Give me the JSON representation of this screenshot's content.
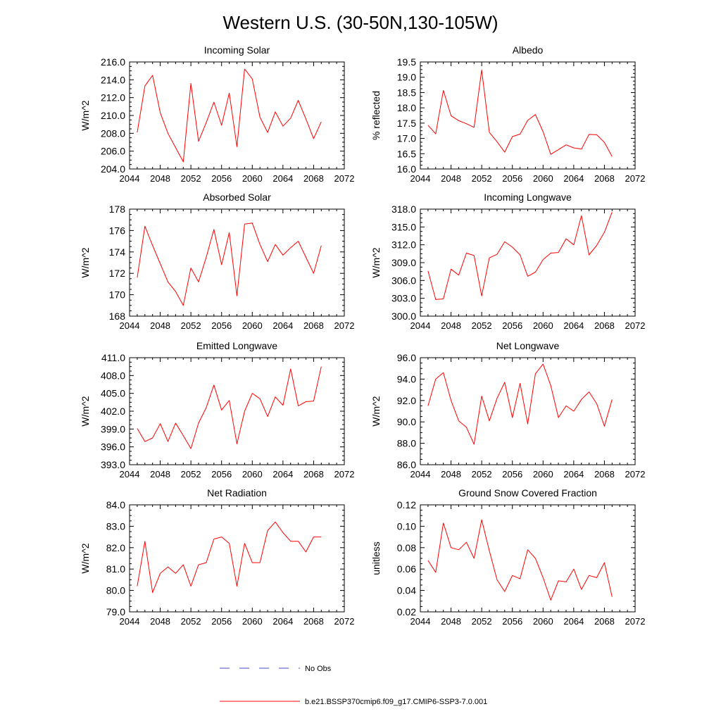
{
  "figure": {
    "title": "Western U.S. (30-50N,130-105W)"
  },
  "legend": {
    "items": [
      {
        "label": "No Obs",
        "color": "#4444cc",
        "dashed": true
      },
      {
        "label": "b.e21.BSSP370cmip6.f09_g17.CMIP6-SSP3-7.0.001",
        "color": "#ff0000",
        "dashed": false
      }
    ]
  },
  "chart_data": [
    {
      "type": "line",
      "title": "Incoming Solar",
      "ylabel": "W/m^2",
      "xlim": [
        2044,
        2072
      ],
      "ylim": [
        204.0,
        216.0
      ],
      "xticks": [
        2044,
        2048,
        2052,
        2056,
        2060,
        2064,
        2068,
        2072
      ],
      "xtick_labels": [
        "2044",
        "2048",
        "2052",
        "2056",
        "2060",
        "2064",
        "2068",
        "2072"
      ],
      "yticks": [
        204.0,
        206.0,
        208.0,
        210.0,
        212.0,
        214.0,
        216.0
      ],
      "ytick_labels": [
        "204.0",
        "206.0",
        "208.0",
        "210.0",
        "212.0",
        "214.0",
        "216.0"
      ],
      "x": [
        2045,
        2046,
        2047,
        2048,
        2049,
        2050,
        2051,
        2052,
        2053,
        2054,
        2055,
        2056,
        2057,
        2058,
        2059,
        2060,
        2061,
        2062,
        2063,
        2064,
        2065,
        2066,
        2067,
        2068,
        2069
      ],
      "series": [
        {
          "color": "#ff0000",
          "values": [
            208.1,
            213.3,
            214.5,
            210.3,
            208.0,
            206.4,
            204.8,
            213.6,
            207.1,
            209.2,
            211.5,
            208.9,
            212.5,
            206.5,
            215.2,
            214.1,
            209.8,
            208.1,
            210.4,
            208.8,
            209.7,
            211.7,
            209.6,
            207.4,
            209.3
          ]
        }
      ]
    },
    {
      "type": "line",
      "title": "Albedo",
      "ylabel": "% reflected",
      "xlim": [
        2044,
        2072
      ],
      "ylim": [
        16.0,
        19.5
      ],
      "xticks": [
        2044,
        2048,
        2052,
        2056,
        2060,
        2064,
        2068,
        2072
      ],
      "xtick_labels": [
        "2044",
        "2048",
        "2052",
        "2056",
        "2060",
        "2064",
        "2068",
        "2072"
      ],
      "yticks": [
        16.0,
        16.5,
        17.0,
        17.5,
        18.0,
        18.5,
        19.0,
        19.5
      ],
      "ytick_labels": [
        "16.0",
        "16.5",
        "17.0",
        "17.5",
        "18.0",
        "18.5",
        "19.0",
        "19.5"
      ],
      "x": [
        2045,
        2046,
        2047,
        2048,
        2049,
        2050,
        2051,
        2052,
        2053,
        2054,
        2055,
        2056,
        2057,
        2058,
        2059,
        2060,
        2061,
        2062,
        2063,
        2064,
        2065,
        2066,
        2067,
        2068,
        2069
      ],
      "series": [
        {
          "color": "#ff0000",
          "values": [
            17.43,
            17.15,
            18.57,
            17.74,
            17.58,
            17.48,
            17.36,
            19.24,
            17.2,
            16.89,
            16.55,
            17.06,
            17.14,
            17.59,
            17.78,
            17.22,
            16.48,
            16.63,
            16.79,
            16.69,
            16.65,
            17.13,
            17.12,
            16.87,
            16.41
          ]
        }
      ]
    },
    {
      "type": "line",
      "title": "Absorbed Solar",
      "ylabel": "W/m^2",
      "xlim": [
        2044,
        2072
      ],
      "ylim": [
        168,
        178
      ],
      "xticks": [
        2044,
        2048,
        2052,
        2056,
        2060,
        2064,
        2068,
        2072
      ],
      "xtick_labels": [
        "2044",
        "2048",
        "2052",
        "2056",
        "2060",
        "2064",
        "2068",
        "2072"
      ],
      "yticks": [
        168,
        170,
        172,
        174,
        176,
        178
      ],
      "ytick_labels": [
        "168",
        "170",
        "172",
        "174",
        "176",
        "178"
      ],
      "x": [
        2045,
        2046,
        2047,
        2048,
        2049,
        2050,
        2051,
        2052,
        2053,
        2054,
        2055,
        2056,
        2057,
        2058,
        2059,
        2060,
        2061,
        2062,
        2063,
        2064,
        2065,
        2066,
        2067,
        2068,
        2069
      ],
      "series": [
        {
          "color": "#ff0000",
          "values": [
            171.6,
            176.4,
            174.6,
            172.9,
            171.2,
            170.3,
            169.0,
            172.5,
            171.2,
            173.5,
            176.1,
            172.8,
            175.8,
            169.9,
            176.6,
            176.7,
            174.7,
            173.1,
            174.7,
            173.7,
            174.4,
            175.0,
            173.5,
            172.0,
            174.6
          ]
        }
      ]
    },
    {
      "type": "line",
      "title": "Incoming Longwave",
      "ylabel": "W/m^2",
      "xlim": [
        2044,
        2072
      ],
      "ylim": [
        300.0,
        318.0
      ],
      "xticks": [
        2044,
        2048,
        2052,
        2056,
        2060,
        2064,
        2068,
        2072
      ],
      "xtick_labels": [
        "2044",
        "2048",
        "2052",
        "2056",
        "2060",
        "2064",
        "2068",
        "2072"
      ],
      "yticks": [
        300.0,
        303.0,
        306.0,
        309.0,
        312.0,
        315.0,
        318.0
      ],
      "ytick_labels": [
        "300.0",
        "303.0",
        "306.0",
        "309.0",
        "312.0",
        "315.0",
        "318.0"
      ],
      "x": [
        2045,
        2046,
        2047,
        2048,
        2049,
        2050,
        2051,
        2052,
        2053,
        2054,
        2055,
        2056,
        2057,
        2058,
        2059,
        2060,
        2061,
        2062,
        2063,
        2064,
        2065,
        2066,
        2067,
        2068,
        2069
      ],
      "series": [
        {
          "color": "#ff0000",
          "values": [
            307.6,
            302.8,
            302.9,
            307.9,
            306.9,
            310.6,
            310.2,
            303.4,
            309.8,
            310.4,
            312.5,
            311.6,
            310.3,
            306.7,
            307.4,
            309.5,
            310.6,
            310.7,
            313.0,
            312.0,
            316.9,
            310.3,
            311.9,
            314.1,
            317.5
          ]
        }
      ]
    },
    {
      "type": "line",
      "title": "Emitted Longwave",
      "ylabel": "W/m^2",
      "xlim": [
        2044,
        2072
      ],
      "ylim": [
        393.0,
        411.0
      ],
      "xticks": [
        2044,
        2048,
        2052,
        2056,
        2060,
        2064,
        2068,
        2072
      ],
      "xtick_labels": [
        "2044",
        "2048",
        "2052",
        "2056",
        "2060",
        "2064",
        "2068",
        "2072"
      ],
      "yticks": [
        393.0,
        396.0,
        399.0,
        402.0,
        405.0,
        408.0,
        411.0
      ],
      "ytick_labels": [
        "393.0",
        "396.0",
        "399.0",
        "402.0",
        "405.0",
        "408.0",
        "411.0"
      ],
      "x": [
        2045,
        2046,
        2047,
        2048,
        2049,
        2050,
        2051,
        2052,
        2053,
        2054,
        2055,
        2056,
        2057,
        2058,
        2059,
        2060,
        2061,
        2062,
        2063,
        2064,
        2065,
        2066,
        2067,
        2068,
        2069
      ],
      "series": [
        {
          "color": "#ff0000",
          "values": [
            399.1,
            396.9,
            397.5,
            399.9,
            396.9,
            400.0,
            397.9,
            395.7,
            400.0,
            402.6,
            406.4,
            402.2,
            403.8,
            396.5,
            402.0,
            405.0,
            404.1,
            401.1,
            404.4,
            403.0,
            409.1,
            402.9,
            403.6,
            403.7,
            409.5
          ]
        }
      ]
    },
    {
      "type": "line",
      "title": "Net Longwave",
      "ylabel": "W/m^2",
      "xlim": [
        2044,
        2072
      ],
      "ylim": [
        86.0,
        96.0
      ],
      "xticks": [
        2044,
        2048,
        2052,
        2056,
        2060,
        2064,
        2068,
        2072
      ],
      "xtick_labels": [
        "2044",
        "2048",
        "2052",
        "2056",
        "2060",
        "2064",
        "2068",
        "2072"
      ],
      "yticks": [
        86.0,
        88.0,
        90.0,
        92.0,
        94.0,
        96.0
      ],
      "ytick_labels": [
        "86.0",
        "88.0",
        "90.0",
        "92.0",
        "94.0",
        "96.0"
      ],
      "x": [
        2045,
        2046,
        2047,
        2048,
        2049,
        2050,
        2051,
        2052,
        2053,
        2054,
        2055,
        2056,
        2057,
        2058,
        2059,
        2060,
        2061,
        2062,
        2063,
        2064,
        2065,
        2066,
        2067,
        2068,
        2069
      ],
      "series": [
        {
          "color": "#ff0000",
          "values": [
            91.5,
            94.0,
            94.6,
            92.0,
            90.1,
            89.5,
            87.9,
            92.4,
            90.1,
            92.2,
            93.7,
            90.4,
            93.6,
            89.8,
            94.5,
            95.4,
            93.4,
            90.4,
            91.5,
            91.0,
            92.1,
            92.8,
            91.7,
            89.6,
            92.1
          ]
        }
      ]
    },
    {
      "type": "line",
      "title": "Net Radiation",
      "ylabel": "W/m^2",
      "xlim": [
        2044,
        2072
      ],
      "ylim": [
        79.0,
        84.0
      ],
      "xticks": [
        2044,
        2048,
        2052,
        2056,
        2060,
        2064,
        2068,
        2072
      ],
      "xtick_labels": [
        "2044",
        "2048",
        "2052",
        "2056",
        "2060",
        "2064",
        "2068",
        "2072"
      ],
      "yticks": [
        79.0,
        80.0,
        81.0,
        82.0,
        83.0,
        84.0
      ],
      "ytick_labels": [
        "79.0",
        "80.0",
        "81.0",
        "82.0",
        "83.0",
        "84.0"
      ],
      "x": [
        2045,
        2046,
        2047,
        2048,
        2049,
        2050,
        2051,
        2052,
        2053,
        2054,
        2055,
        2056,
        2057,
        2058,
        2059,
        2060,
        2061,
        2062,
        2063,
        2064,
        2065,
        2066,
        2067,
        2068,
        2069
      ],
      "series": [
        {
          "color": "#ff0000",
          "values": [
            80.2,
            82.3,
            79.9,
            80.8,
            81.1,
            80.8,
            81.2,
            80.2,
            81.2,
            81.3,
            82.4,
            82.5,
            82.2,
            80.2,
            82.2,
            81.3,
            81.3,
            82.8,
            83.2,
            82.7,
            82.3,
            82.3,
            81.8,
            82.5,
            82.5
          ]
        }
      ]
    },
    {
      "type": "line",
      "title": "Ground Snow Covered Fraction",
      "ylabel": "unitless",
      "xlim": [
        2044,
        2072
      ],
      "ylim": [
        0.02,
        0.12
      ],
      "xticks": [
        2044,
        2048,
        2052,
        2056,
        2060,
        2064,
        2068,
        2072
      ],
      "xtick_labels": [
        "2044",
        "2048",
        "2052",
        "2056",
        "2060",
        "2064",
        "2068",
        "2072"
      ],
      "yticks": [
        0.02,
        0.04,
        0.06,
        0.08,
        0.1,
        0.12
      ],
      "ytick_labels": [
        "0.02",
        "0.04",
        "0.06",
        "0.08",
        "0.10",
        "0.12"
      ],
      "x": [
        2045,
        2046,
        2047,
        2048,
        2049,
        2050,
        2051,
        2052,
        2053,
        2054,
        2055,
        2056,
        2057,
        2058,
        2059,
        2060,
        2061,
        2062,
        2063,
        2064,
        2065,
        2066,
        2067,
        2068,
        2069
      ],
      "series": [
        {
          "color": "#ff0000",
          "values": [
            0.068,
            0.057,
            0.103,
            0.08,
            0.078,
            0.085,
            0.07,
            0.106,
            0.077,
            0.05,
            0.039,
            0.054,
            0.051,
            0.078,
            0.07,
            0.052,
            0.031,
            0.049,
            0.048,
            0.06,
            0.041,
            0.054,
            0.052,
            0.066,
            0.034
          ]
        }
      ]
    }
  ]
}
